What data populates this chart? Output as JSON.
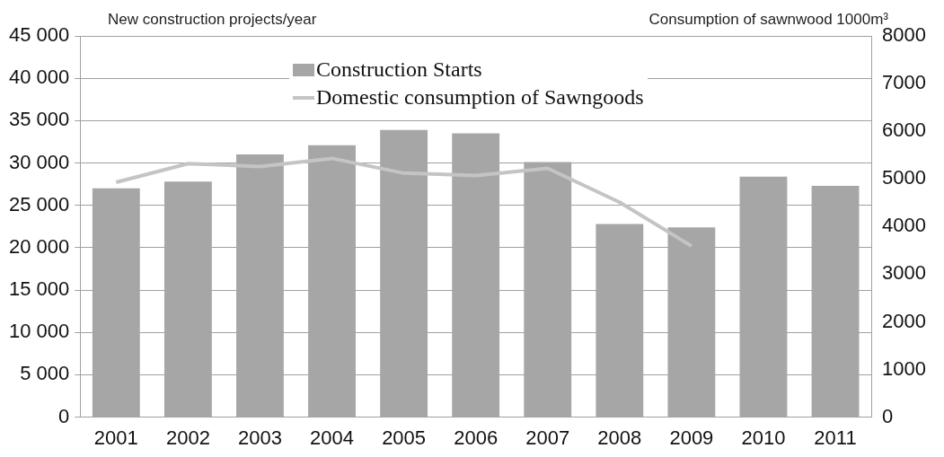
{
  "chart_data": {
    "type": "bar",
    "ylabel": "New construction projects/year",
    "y2label": "Consumption of sawnwood 1000m³",
    "categories": [
      "2001",
      "2002",
      "2003",
      "2004",
      "2005",
      "2006",
      "2007",
      "2008",
      "2009",
      "2010",
      "2011"
    ],
    "series": [
      {
        "name": "Construction Starts",
        "color": "#a6a6a6",
        "values": [
          27000,
          27800,
          31000,
          32100,
          33900,
          33500,
          30100,
          22800,
          22400,
          28400,
          27300
        ]
      },
      {
        "name": "Domestic consumption of Sawngoods",
        "type": "line",
        "axis": "y2",
        "color": "#c4c4c4",
        "values": [
          4930,
          5320,
          5260,
          5430,
          5120,
          5070,
          5220,
          4510,
          3590,
          null,
          null
        ]
      }
    ],
    "ylim": [
      0,
      45000
    ],
    "yticks": [
      {
        "value": 0,
        "label": "0"
      },
      {
        "value": 5000,
        "label": "5 000"
      },
      {
        "value": 10000,
        "label": "10 000"
      },
      {
        "value": 15000,
        "label": "15 000"
      },
      {
        "value": 20000,
        "label": "20 000"
      },
      {
        "value": 25000,
        "label": "25 000"
      },
      {
        "value": 30000,
        "label": "30 000"
      },
      {
        "value": 35000,
        "label": "35 000"
      },
      {
        "value": 40000,
        "label": "40 000"
      },
      {
        "value": 45000,
        "label": "45 000"
      }
    ],
    "y2lim": [
      0,
      8000
    ],
    "y2ticks": [
      0,
      1000,
      2000,
      3000,
      4000,
      5000,
      6000,
      7000,
      8000
    ],
    "grid": "y",
    "legend": "top",
    "marker": "none",
    "line_style": "solid"
  }
}
